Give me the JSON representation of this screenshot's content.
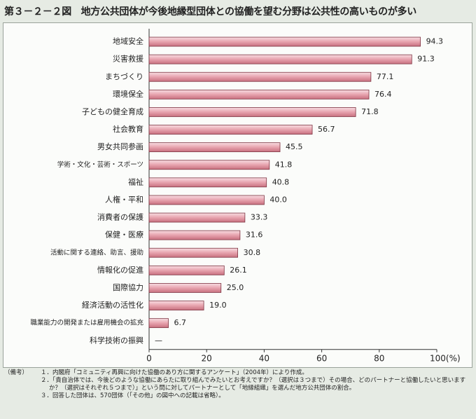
{
  "chart_data": {
    "type": "hbar",
    "title": "第３－２－２図　地方公共団体が今後地縁型団体との協働を望む分野は公共性の高いものが多い",
    "categories": [
      "地域安全",
      "災害救援",
      "まちづくり",
      "環境保全",
      "子どもの健全育成",
      "社会教育",
      "男女共同参画",
      "学術・文化・芸術・スポーツ",
      "福祉",
      "人権・平和",
      "消費者の保護",
      "保健・医療",
      "活動に関する連絡、助言、援助",
      "情報化の促進",
      "国際協力",
      "経済活動の活性化",
      "職業能力の開発または雇用機会の拡充",
      "科学技術の振興"
    ],
    "values": [
      94.3,
      91.3,
      77.1,
      76.4,
      71.8,
      56.7,
      45.5,
      41.8,
      40.8,
      40.0,
      33.3,
      31.6,
      30.8,
      26.1,
      25.0,
      19.0,
      6.7,
      null
    ],
    "value_labels": [
      "94.3",
      "91.3",
      "77.1",
      "76.4",
      "71.8",
      "56.7",
      "45.5",
      "41.8",
      "40.8",
      "40.0",
      "33.3",
      "31.6",
      "30.8",
      "26.1",
      "25.0",
      "19.0",
      "6.7",
      "—"
    ],
    "color": "#e7a3ae",
    "xlim": [
      0,
      100
    ],
    "xticks": [
      0,
      20,
      40,
      60,
      80,
      {
        "value": 100,
        "label": "100(%)"
      }
    ],
    "notes_label": "（備考）",
    "notes": [
      "１．内閣府「コミュニティ再興に向けた協働のあり方に関するアンケート」（2004年）により作成。",
      "２．「貴自治体では、今後どのような協働にあらたに取り組んでみたいとお考えですか？（選択は３つまで）その場合、どのパートナーと協働したいと思いますか？（選択はそれぞれ５つまで）」という問に対してパートナーとして「地縁組織」を選んだ地方公共団体の割合。",
      "３．回答した団体は、570団体（「その他」の図中への記載は省略）。"
    ]
  }
}
